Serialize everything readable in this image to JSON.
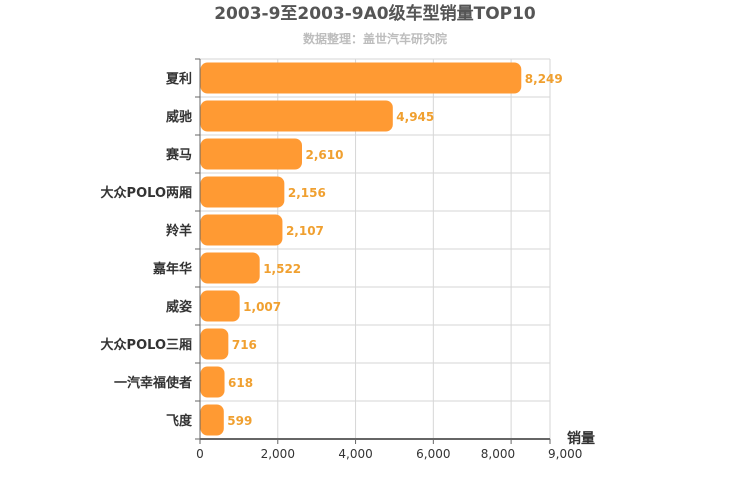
{
  "colors": {
    "bar": "#ff9a33",
    "value_label": "#f0a030",
    "grid": "#d6d6d6",
    "axis": "#666666"
  },
  "chart_data": {
    "type": "bar",
    "orientation": "horizontal",
    "title": "2003-9至2003-9A0级车型销量TOP10",
    "subtitle": "数据整理：盖世汽车研究院",
    "xlabel": "销量",
    "ylabel": "",
    "categories": [
      "夏利",
      "威驰",
      "赛马",
      "大众POLO两厢",
      "羚羊",
      "嘉年华",
      "威姿",
      "大众POLO三厢",
      "一汽幸福使者",
      "飞度"
    ],
    "values": [
      8249,
      4945,
      2610,
      2156,
      2107,
      1522,
      1007,
      716,
      618,
      599
    ],
    "value_labels": [
      "8,249",
      "4,945",
      "2,610",
      "2,156",
      "2,107",
      "1,522",
      "1,007",
      "716",
      "618",
      "599"
    ],
    "xlim": [
      0,
      9000
    ],
    "xticks": [
      0,
      2000,
      4000,
      6000,
      8000,
      9000
    ],
    "xtick_labels": [
      "0",
      "2,000",
      "4,000",
      "6,000",
      "8,000",
      "9,000"
    ],
    "grid": true,
    "legend": "none"
  }
}
